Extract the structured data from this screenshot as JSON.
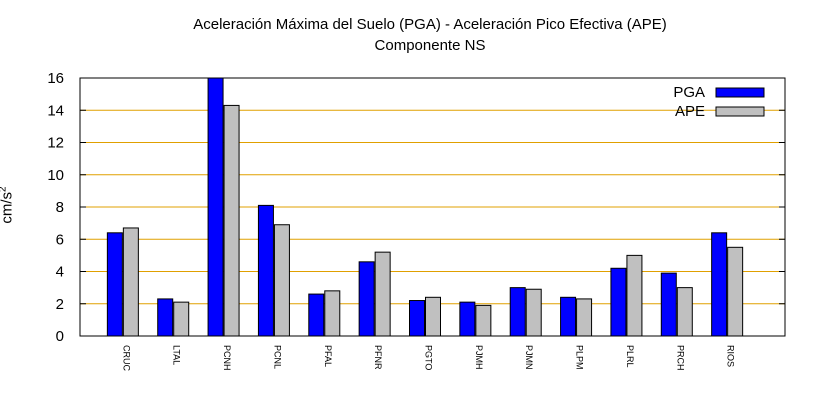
{
  "chart_data": {
    "type": "bar",
    "title_line1": "Aceleración Máxima del Suelo (PGA) -  Aceleración Pico Efectiva (APE)",
    "title_line2": "Componente NS",
    "xlabel": "",
    "ylabel_base": "cm/s",
    "ylabel_exponent": "2",
    "ylim": [
      0,
      16
    ],
    "yticks": [
      "0",
      "2",
      "4",
      "6",
      "8",
      "10",
      "12",
      "14",
      "16"
    ],
    "categories": [
      "CRUC",
      "LTAL",
      "PCNH",
      "PCNL",
      "PFAL",
      "PFNR",
      "PGTO",
      "PJMH",
      "PJMN",
      "PLPM",
      "PLRL",
      "PRCH",
      "RIOS"
    ],
    "series": [
      {
        "name": "PGA",
        "color": "#0000ff",
        "values": [
          6.4,
          2.3,
          16.0,
          8.1,
          2.6,
          4.6,
          2.2,
          2.1,
          3.0,
          2.4,
          4.2,
          3.9,
          6.4
        ]
      },
      {
        "name": "APE",
        "color": "#c0c0c0",
        "values": [
          6.7,
          2.1,
          14.3,
          6.9,
          2.8,
          5.2,
          2.4,
          1.9,
          2.9,
          2.3,
          5.0,
          3.0,
          5.5
        ]
      }
    ],
    "grid": true,
    "grid_color": "#e0a000",
    "legend_position": "top-right"
  }
}
